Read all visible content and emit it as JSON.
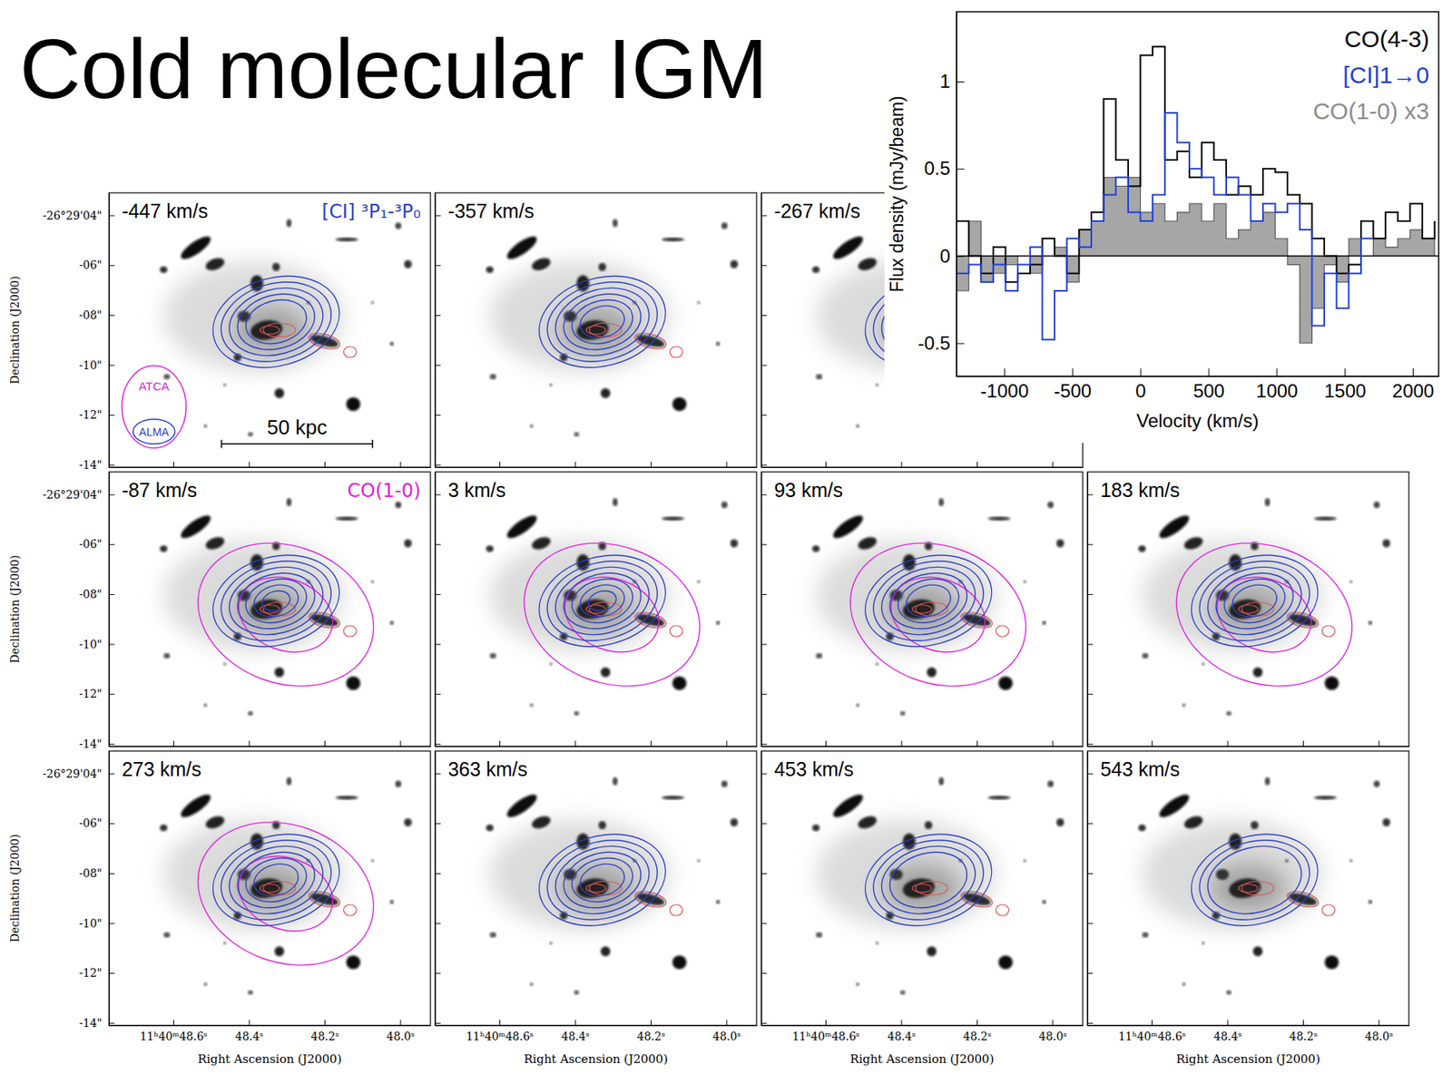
{
  "title": "Cold molecular IGM",
  "chart_data": {
    "type": "step",
    "xlabel": "Velocity (km/s)",
    "ylabel": "Flux density (mJy/beam)",
    "x": [
      -1350,
      -1260,
      -1170,
      -1080,
      -990,
      -900,
      -810,
      -720,
      -630,
      -540,
      -450,
      -360,
      -270,
      -180,
      -90,
      0,
      90,
      180,
      270,
      360,
      450,
      540,
      630,
      720,
      810,
      900,
      990,
      1080,
      1170,
      1260,
      1350,
      1440,
      1530,
      1620,
      1710,
      1800,
      1890,
      1980,
      2070,
      2160
    ],
    "series": [
      {
        "name": "CO(4-3)",
        "color": "#000000",
        "type": "line",
        "values": [
          0.2,
          0.0,
          -0.1,
          0.05,
          -0.15,
          -0.1,
          -0.05,
          0.1,
          0.0,
          -0.1,
          0.15,
          0.25,
          0.9,
          0.55,
          0.4,
          1.15,
          1.2,
          0.55,
          0.6,
          0.45,
          0.65,
          0.55,
          0.35,
          0.4,
          0.35,
          0.5,
          0.48,
          0.35,
          0.3,
          0.1,
          0.0,
          -0.1,
          -0.05,
          0.2,
          0.1,
          0.25,
          0.2,
          0.3,
          0.1,
          0.2
        ]
      },
      {
        "name": "[CI]1→0",
        "color": "#1f3fd8",
        "type": "line",
        "values": [
          -0.1,
          -0.05,
          -0.15,
          -0.05,
          -0.2,
          -0.05,
          0.05,
          -0.48,
          -0.2,
          0.1,
          0.05,
          0.2,
          0.35,
          0.45,
          0.25,
          0.2,
          0.35,
          0.82,
          0.65,
          0.5,
          0.45,
          0.35,
          0.45,
          0.35,
          0.2,
          0.3,
          0.25,
          0.3,
          0.15,
          -0.4,
          -0.1,
          -0.3,
          -0.1,
          0.1,
          0.1,
          null,
          null,
          null,
          null,
          null
        ]
      },
      {
        "name": "CO(1-0) x3",
        "color": "#a6a6a6",
        "type": "area",
        "values": [
          -0.2,
          0.2,
          -0.15,
          -0.1,
          -0.05,
          0.0,
          -0.1,
          0.0,
          0.05,
          -0.15,
          0.15,
          0.2,
          0.45,
          0.4,
          0.45,
          0.25,
          0.3,
          0.2,
          0.25,
          0.3,
          0.2,
          0.3,
          0.1,
          0.15,
          0.2,
          0.25,
          0.1,
          -0.05,
          -0.5,
          -0.3,
          -0.05,
          -0.15,
          0.1,
          0.0,
          0.1,
          0.05,
          0.1,
          0.15,
          0.1,
          0.05
        ]
      }
    ],
    "xlim": [
      -1350,
      2190
    ],
    "xticks": [
      -1000,
      -500,
      0,
      500,
      1000,
      1500,
      2000
    ],
    "ylim": [
      -0.69,
      1.4
    ],
    "yticks": [
      -0.5,
      0,
      0.5,
      1
    ],
    "legend": "top-right"
  },
  "channel_maps": {
    "xlabel": "Right Ascension (J2000)",
    "ylabel": "Declination (J2000)",
    "xlim": [
      48.77,
      47.92
    ],
    "xticks": [
      {
        "value": 48.6,
        "label": "11ʰ40ᵐ48.6ˢ"
      },
      {
        "value": 48.4,
        "label": "48.4ˢ"
      },
      {
        "value": 48.2,
        "label": "48.2ˢ"
      },
      {
        "value": 48.0,
        "label": "48.0ˢ"
      }
    ],
    "ylim": [
      3.1,
      14.1
    ],
    "yticks": [
      {
        "value": 4,
        "label": "-26°29'04\""
      },
      {
        "value": 6,
        "label": "-06\""
      },
      {
        "value": 8,
        "label": "-08\""
      },
      {
        "value": 10,
        "label": "-10\""
      },
      {
        "value": 12,
        "label": "-12\""
      },
      {
        "value": 14,
        "label": "-14\""
      }
    ],
    "rows": [
      [
        {
          "label": "-447 km/s",
          "co10": false,
          "ci_levels": 5,
          "line_label": "[CI] ³P₁-³P₀",
          "line_color": "#2b3fc9",
          "beam_labels": [
            "ATCA",
            "ALMA"
          ],
          "scale_bar": "50 kpc"
        },
        {
          "label": "-357 km/s",
          "co10": false,
          "ci_levels": 6
        },
        {
          "label": "-267 km/s",
          "co10": false,
          "ci_levels": 5
        }
      ],
      [
        {
          "label": "-87 km/s",
          "co10": true,
          "ci_levels": 7,
          "line_label": "CO(1-0)",
          "line_color": "#e020e0"
        },
        {
          "label": "3 km/s",
          "co10": true,
          "ci_levels": 7
        },
        {
          "label": "93 km/s",
          "co10": true,
          "ci_levels": 6
        },
        {
          "label": "183 km/s",
          "co10": true,
          "ci_levels": 6
        }
      ],
      [
        {
          "label": "273 km/s",
          "co10": true,
          "ci_levels": 6
        },
        {
          "label": "363 km/s",
          "co10": false,
          "ci_levels": 6
        },
        {
          "label": "453 km/s",
          "co10": false,
          "ci_levels": 4
        },
        {
          "label": "543 km/s",
          "co10": false,
          "ci_levels": 3
        }
      ]
    ]
  }
}
